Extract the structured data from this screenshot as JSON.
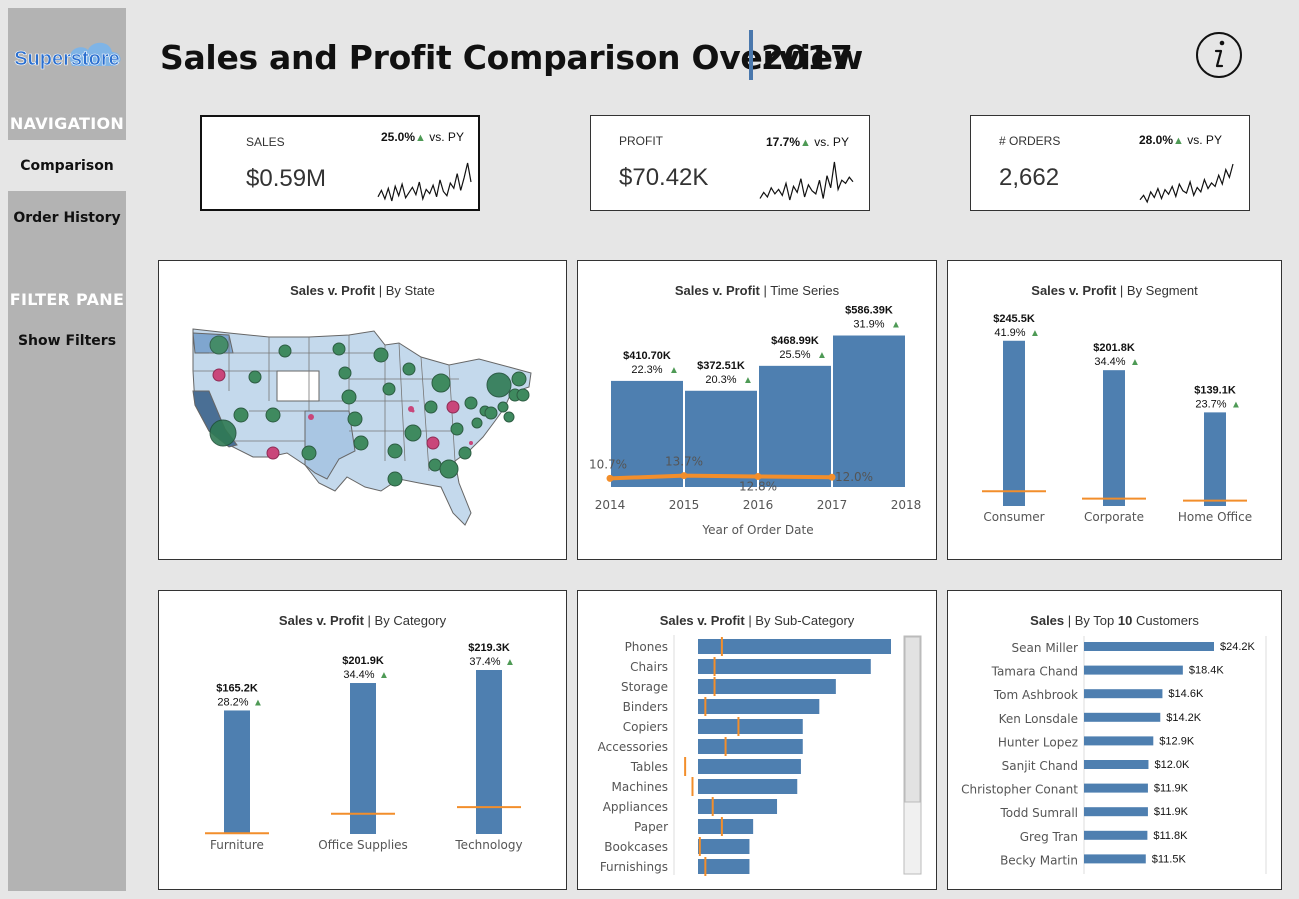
{
  "sidebar": {
    "logo_text": "Superstore",
    "navigation_heading": "NAVIGATION",
    "nav_items": [
      "Comparison",
      "Order History"
    ],
    "filter_heading": "FILTER PANE",
    "show_filters": "Show Filters"
  },
  "header": {
    "title": "Sales and Profit Comparison Overview",
    "year": "2017"
  },
  "kpis": [
    {
      "label": "SALES",
      "value": "$0.59M",
      "change": "25.0%",
      "vs": "vs. PY",
      "spark": [
        8,
        14,
        6,
        16,
        4,
        18,
        9,
        20,
        7,
        12,
        17,
        10,
        22,
        6,
        15,
        11,
        19,
        8,
        24,
        13,
        9,
        21,
        16,
        30,
        14,
        26,
        40,
        22
      ]
    },
    {
      "label": "PROFIT",
      "value": "$70.42K",
      "change": "17.7%",
      "vs": "vs. PY",
      "spark": [
        10,
        14,
        11,
        17,
        13,
        16,
        12,
        20,
        9,
        18,
        14,
        23,
        11,
        19,
        15,
        13,
        22,
        10,
        25,
        17,
        34,
        16,
        22,
        20,
        24,
        21
      ]
    },
    {
      "label": "# ORDERS",
      "value": "2,662",
      "change": "28.0%",
      "vs": "vs. PY",
      "spark": [
        8,
        12,
        6,
        15,
        10,
        18,
        9,
        17,
        13,
        20,
        11,
        22,
        16,
        14,
        24,
        12,
        19,
        15,
        26,
        18,
        23,
        20,
        30,
        22,
        35,
        28,
        40
      ]
    }
  ],
  "arrow_glyph": "▲",
  "panels": {
    "state": {
      "title_bold": "Sales v. Profit",
      "title_rest": " | By State"
    },
    "time": {
      "title_bold": "Sales v. Profit",
      "title_rest": " | Time Series"
    },
    "segment": {
      "title_bold": "Sales v. Profit",
      "title_rest": " | By Segment"
    },
    "category": {
      "title_bold": "Sales v. Profit",
      "title_rest": " | By Category"
    },
    "subcategory": {
      "title_bold": "Sales v. Profit",
      "title_rest": " | By Sub-Category"
    },
    "customers": {
      "title_bold": "Sales",
      "title_rest": " | By Top ",
      "title_num": "10",
      "title_end": " Customers"
    }
  },
  "chart_data": [
    {
      "type": "bar",
      "id": "time_series",
      "xlabel": "Year of Order Date",
      "x_ticks": [
        "2014",
        "2015",
        "2016",
        "2017",
        "2018"
      ],
      "categories": [
        "2014",
        "2015",
        "2016",
        "2017"
      ],
      "series": [
        {
          "name": "Sales",
          "values": [
            410.7,
            372.51,
            468.99,
            586.39
          ],
          "labels": [
            "$410.70K",
            "$372.51K",
            "$468.99K",
            "$586.39K"
          ],
          "growth": [
            "22.3%",
            "20.3%",
            "25.5%",
            "31.9%"
          ]
        },
        {
          "name": "Profit Ratio",
          "values": [
            10.7,
            13.7,
            12.8,
            12.0
          ],
          "labels": [
            "10.7%",
            "13.7%",
            "12.8%",
            "12.0%"
          ]
        }
      ]
    },
    {
      "type": "bar",
      "id": "segment",
      "categories": [
        "Consumer",
        "Corporate",
        "Home Office"
      ],
      "sales": [
        245.5,
        201.8,
        139.1
      ],
      "sales_labels": [
        "$245.5K",
        "$201.8K",
        "$139.1K"
      ],
      "growth": [
        "41.9%",
        "34.4%",
        "23.7%"
      ],
      "profit": [
        22,
        11,
        8
      ],
      "ylim": [
        0,
        260
      ]
    },
    {
      "type": "bar",
      "id": "category",
      "categories": [
        "Furniture",
        "Office Supplies",
        "Technology"
      ],
      "sales": [
        165.2,
        201.9,
        219.3
      ],
      "sales_labels": [
        "$165.2K",
        "$201.9K",
        "$219.3K"
      ],
      "growth": [
        "28.2%",
        "34.4%",
        "37.4%"
      ],
      "profit": [
        1,
        27,
        36
      ],
      "ylim": [
        0,
        230
      ]
    },
    {
      "type": "bar",
      "id": "subcategory",
      "categories": [
        "Phones",
        "Chairs",
        "Storage",
        "Binders",
        "Copiers",
        "Accessories",
        "Tables",
        "Machines",
        "Appliances",
        "Paper",
        "Bookcases",
        "Furnishings"
      ],
      "sales": [
        105,
        94,
        75,
        66,
        57,
        57,
        56,
        54,
        43,
        30,
        28,
        28
      ],
      "profit": [
        13,
        9,
        9,
        4,
        22,
        15,
        -7,
        -3,
        8,
        13,
        1,
        4
      ],
      "xlim": [
        -10,
        110
      ]
    },
    {
      "type": "bar",
      "id": "top_customers",
      "categories": [
        "Sean Miller",
        "Tamara Chand",
        "Tom Ashbrook",
        "Ken Lonsdale",
        "Hunter Lopez",
        "Sanjit Chand",
        "Christopher Conant",
        "Todd Sumrall",
        "Greg Tran",
        "Becky Martin"
      ],
      "values": [
        24.2,
        18.4,
        14.6,
        14.2,
        12.9,
        12.0,
        11.9,
        11.9,
        11.8,
        11.5
      ],
      "labels": [
        "$24.2K",
        "$18.4K",
        "$14.6K",
        "$14.2K",
        "$12.9K",
        "$12.0K",
        "$11.9K",
        "$11.9K",
        "$11.8K",
        "$11.5K"
      ],
      "xlim": [
        0,
        27
      ]
    }
  ],
  "colors": {
    "bar": "#4e7fb0",
    "profit": "#f28e2b",
    "up": "#4e9a55",
    "map_fill": "#c4d9ec",
    "bubble_green": "#3f8a5f",
    "bubble_red": "#c9467a"
  }
}
